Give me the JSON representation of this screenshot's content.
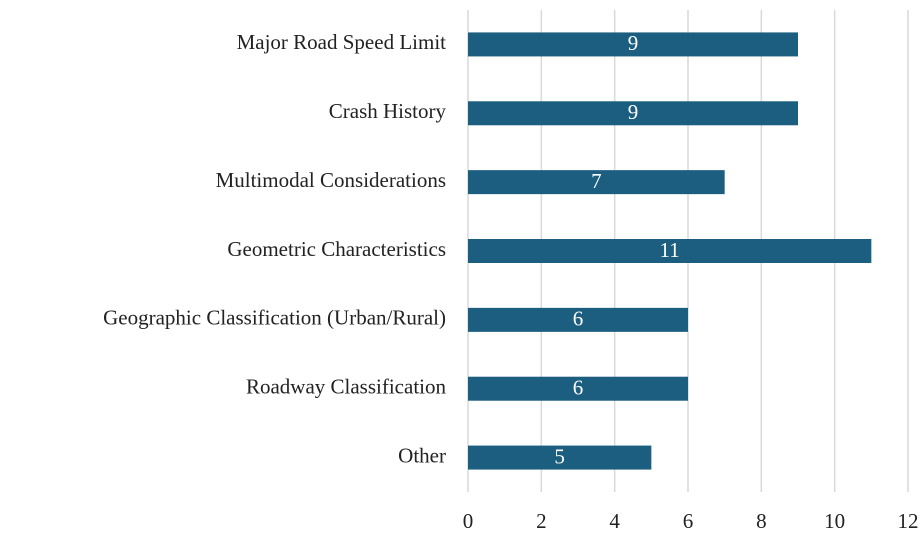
{
  "chart_data": {
    "type": "bar",
    "orientation": "horizontal",
    "categories": [
      "Major Road Speed Limit",
      "Crash History",
      "Multimodal Considerations",
      "Geometric Characteristics",
      "Geographic Classification (Urban/Rural)",
      "Roadway Classification",
      "Other"
    ],
    "values": [
      9,
      9,
      7,
      11,
      6,
      6,
      5
    ],
    "color": "#1b5e80",
    "xlim": [
      0,
      12
    ],
    "xticks": [
      0,
      2,
      4,
      6,
      8,
      10,
      12
    ],
    "grid": true
  }
}
